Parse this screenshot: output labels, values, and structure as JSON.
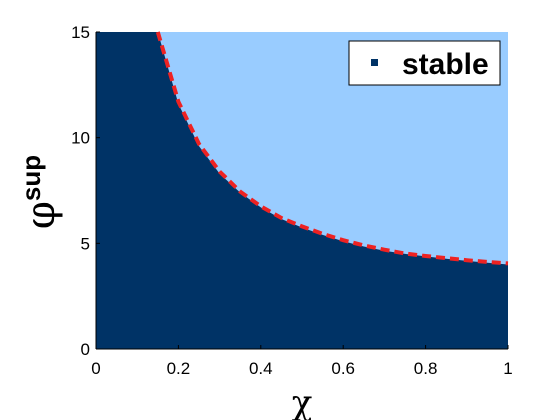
{
  "chart_data": {
    "type": "area",
    "title": "",
    "xlabel": "χ",
    "ylabel": "φ",
    "ylabel_superscript": "sup",
    "xlim": [
      0,
      1
    ],
    "ylim": [
      0,
      15
    ],
    "x_ticks": [
      "0",
      "0.2",
      "0.4",
      "0.6",
      "0.8",
      "1"
    ],
    "y_ticks": [
      "0",
      "5",
      "10",
      "15"
    ],
    "x_tick_values": [
      0,
      0.2,
      0.4,
      0.6,
      0.8,
      1
    ],
    "y_tick_values": [
      0,
      5,
      10,
      15
    ],
    "grid": false,
    "legend": {
      "entries": [
        "stable"
      ],
      "placement": "top-right"
    },
    "colors": {
      "stable_region": "#003366",
      "unstable_region": "#99ccff",
      "boundary": "#ee2222"
    },
    "series": [
      {
        "name": "stable",
        "style": "filled-region-below-boundary",
        "x": [
          0.15,
          0.2,
          0.25,
          0.3,
          0.35,
          0.4,
          0.45,
          0.5,
          0.55,
          0.6,
          0.65,
          0.7,
          0.75,
          0.8,
          0.85,
          0.9,
          0.95,
          1.0
        ],
        "y": [
          15.0,
          11.6,
          9.6,
          8.3,
          7.4,
          6.7,
          6.15,
          5.75,
          5.4,
          5.1,
          4.85,
          4.65,
          4.5,
          4.38,
          4.27,
          4.17,
          4.08,
          4.0
        ]
      },
      {
        "style": "dashed-boundary-line",
        "x": [
          0.15,
          0.2,
          0.25,
          0.3,
          0.35,
          0.4,
          0.45,
          0.5,
          0.55,
          0.6,
          0.65,
          0.7,
          0.75,
          0.8,
          0.85,
          0.9,
          0.95,
          1.0
        ],
        "y": [
          15.0,
          11.7,
          9.7,
          8.4,
          7.45,
          6.75,
          6.2,
          5.8,
          5.45,
          5.15,
          4.9,
          4.7,
          4.52,
          4.4,
          4.3,
          4.2,
          4.12,
          4.05
        ]
      }
    ]
  }
}
